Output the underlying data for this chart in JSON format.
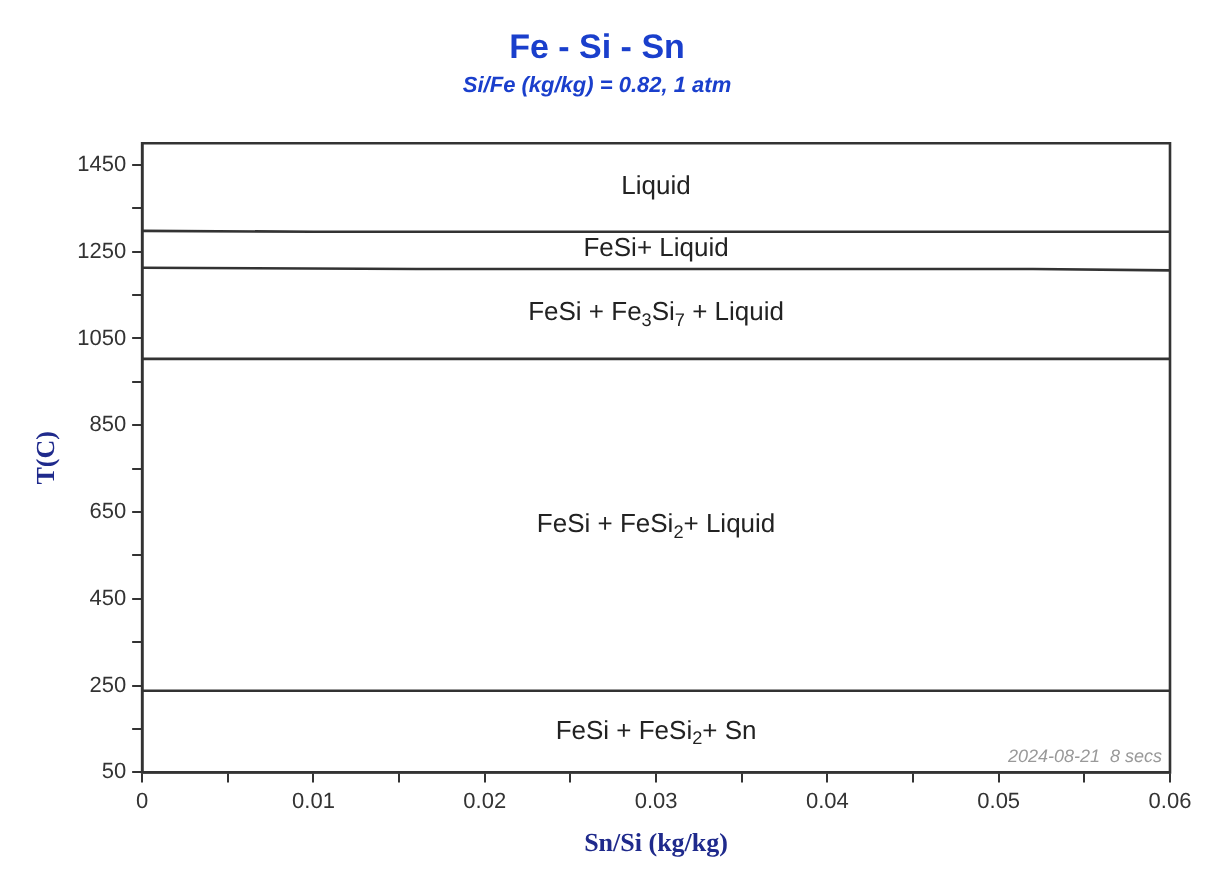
{
  "chart_data": {
    "type": "line",
    "title": "Fe - Si - Sn",
    "subtitle": "Si/Fe (kg/kg) = 0.82, 1 atm",
    "xlabel": "Sn/Si (kg/kg)",
    "ylabel": "T(C)",
    "xlim": [
      0,
      0.06
    ],
    "ylim": [
      50,
      1500
    ],
    "xticks": [
      0,
      {
        "value": 0.005,
        "label": null
      },
      0.01,
      {
        "value": 0.015,
        "label": null
      },
      0.02,
      {
        "value": 0.025,
        "label": null
      },
      0.03,
      {
        "value": 0.035,
        "label": null
      },
      0.04,
      {
        "value": 0.045,
        "label": null
      },
      0.05,
      {
        "value": 0.055,
        "label": null
      },
      0.06
    ],
    "yticks": [
      50,
      {
        "value": 150,
        "label": null
      },
      250,
      {
        "value": 350,
        "label": null
      },
      450,
      {
        "value": 550,
        "label": null
      },
      650,
      {
        "value": 750,
        "label": null
      },
      850,
      {
        "value": 950,
        "label": null
      },
      1050,
      {
        "value": 1150,
        "label": null
      },
      1250,
      {
        "value": 1350,
        "label": null
      },
      1450
    ],
    "series": [
      {
        "color": "#333333",
        "x": [
          0,
          0.01,
          0.06
        ],
        "values": [
          1298,
          1296,
          1296
        ]
      },
      {
        "color": "#333333",
        "x": [
          0,
          0.016,
          0.052,
          0.06
        ],
        "values": [
          1213,
          1210,
          1210,
          1207
        ]
      },
      {
        "color": "#333333",
        "x": [
          0,
          0.06
        ],
        "values": [
          1003,
          1003
        ]
      },
      {
        "color": "#333333",
        "x": [
          0,
          0.06
        ],
        "values": [
          238,
          238
        ]
      }
    ],
    "annotations": [
      "Liquid",
      "FeSi+ Liquid",
      "FeSi + Fe$_{3}$Si$_{7}$ + Liquid",
      "FeSi + FeSi$_{2}$+ Liquid",
      "FeSi + FeSi$_{2}$+ Sn",
      "2024-08-21  8 secs"
    ],
    "grid": false,
    "legend": false,
    "marker": "none",
    "line_style": "solid"
  }
}
